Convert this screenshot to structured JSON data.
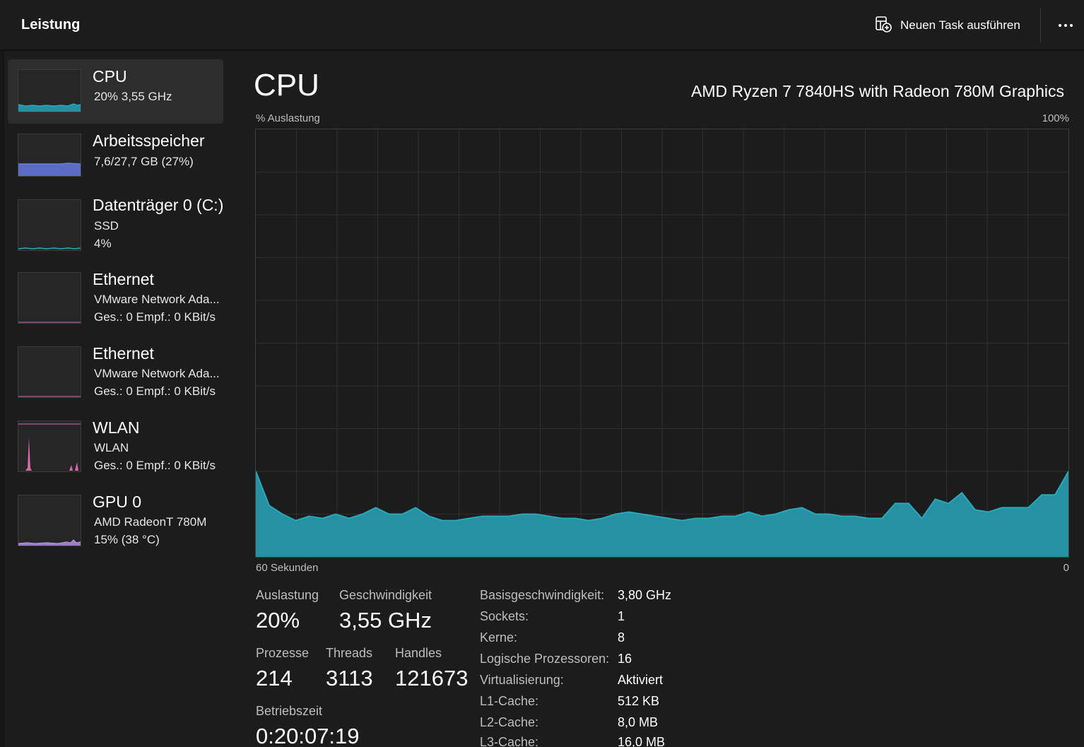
{
  "header": {
    "title": "Leistung",
    "run_task_label": "Neuen Task ausführen",
    "run_task_icon": "new-task-icon",
    "more_icon": "more-options-icon"
  },
  "colors": {
    "cpu": "#2aa7b9",
    "cpu_fill": "#2591a3",
    "memory": "#6b7fd8",
    "network": "#d46aaa",
    "gpu": "#9b7bc9"
  },
  "sidebar": {
    "items": [
      {
        "title": "CPU",
        "line1": "20%  3,55 GHz",
        "line2": "",
        "selected": true
      },
      {
        "title": "Arbeitsspeicher",
        "line1": "7,6/27,7 GB (27%)",
        "line2": ""
      },
      {
        "title": "Datenträger 0 (C:)",
        "line1": "SSD",
        "line2": "4%"
      },
      {
        "title": "Ethernet",
        "line1": "VMware Network Ada...",
        "line2": "Ges.: 0  Empf.: 0 KBit/s"
      },
      {
        "title": "Ethernet",
        "line1": "VMware Network Ada...",
        "line2": "Ges.: 0  Empf.: 0 KBit/s"
      },
      {
        "title": "WLAN",
        "line1": "WLAN",
        "line2": "Ges.: 0  Empf.: 0 KBit/s"
      },
      {
        "title": "GPU 0",
        "line1": "AMD RadeonT 780M",
        "line2": "15%  (38 °C)"
      }
    ]
  },
  "main": {
    "title": "CPU",
    "model": "AMD Ryzen 7 7840HS with Radeon 780M Graphics",
    "util_label": "% Auslastung",
    "max_label": "100%",
    "time_label": "60 Sekunden",
    "zero_label": "0",
    "stats": {
      "utilization_label": "Auslastung",
      "utilization": "20%",
      "speed_label": "Geschwindigkeit",
      "speed": "3,55 GHz",
      "processes_label": "Prozesse",
      "processes": "214",
      "threads_label": "Threads",
      "threads": "3113",
      "handles_label": "Handles",
      "handles": "121673",
      "uptime_label": "Betriebszeit",
      "uptime": "0:20:07:19"
    },
    "specs": [
      {
        "key": "Basisgeschwindigkeit:",
        "value": "3,80 GHz"
      },
      {
        "key": "Sockets:",
        "value": "1"
      },
      {
        "key": "Kerne:",
        "value": "8"
      },
      {
        "key": "Logische Prozessoren:",
        "value": "16"
      },
      {
        "key": "Virtualisierung:",
        "value": "Aktiviert"
      },
      {
        "key": "L1-Cache:",
        "value": "512 KB"
      },
      {
        "key": "L2-Cache:",
        "value": "8,0 MB"
      },
      {
        "key": "L3-Cache:",
        "value": "16,0 MB"
      }
    ]
  },
  "chart_data": {
    "type": "area",
    "xlabel": "60 Sekunden",
    "ylabel": "% Auslastung",
    "ylim": [
      0,
      100
    ],
    "xlim": [
      60,
      0
    ],
    "grid": true,
    "series": [
      {
        "values": [
          20,
          12,
          10,
          8.5,
          9.5,
          9,
          10,
          9,
          10,
          11.5,
          10,
          10,
          11.5,
          9.5,
          8.5,
          8.5,
          9,
          9.5,
          9.5,
          9.5,
          10,
          10,
          9.5,
          9,
          9,
          8.5,
          9,
          10,
          10.5,
          10,
          9.5,
          9,
          8.5,
          9,
          9,
          9.5,
          9.5,
          10.5,
          9.5,
          10,
          11,
          11.5,
          10,
          10,
          9.5,
          9.5,
          9,
          9,
          12.5,
          12.5,
          9,
          13.5,
          12.5,
          15,
          11,
          10.5,
          11.5,
          11.5,
          11.5,
          14.5,
          14.5,
          20
        ]
      }
    ]
  }
}
